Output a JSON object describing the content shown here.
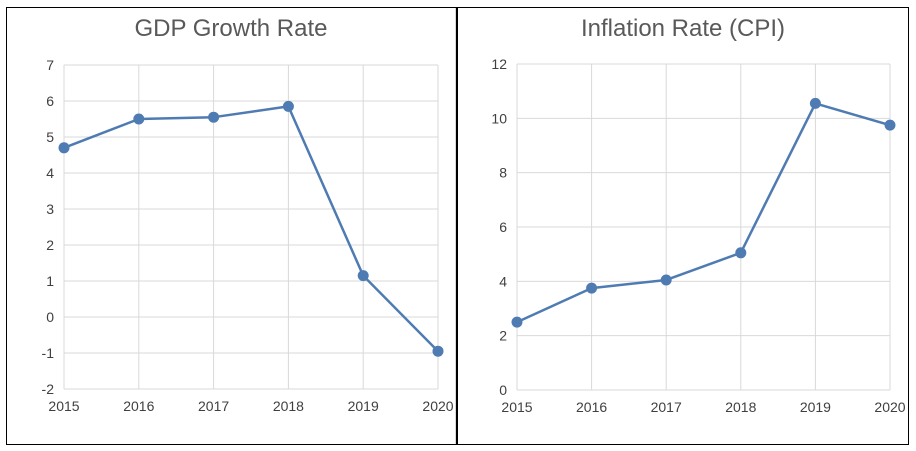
{
  "chart_data": [
    {
      "type": "line",
      "title": "GDP Growth Rate",
      "xlabel": "",
      "ylabel": "",
      "x": [
        "2015",
        "2016",
        "2017",
        "2018",
        "2019",
        "2020"
      ],
      "series": [
        {
          "values": [
            4.7,
            5.5,
            5.55,
            5.85,
            1.15,
            -0.95
          ]
        }
      ],
      "ylim": [
        -2,
        7
      ],
      "yticks": [
        7,
        6,
        5,
        4,
        3,
        2,
        1,
        0,
        -1,
        -2
      ],
      "grid": true,
      "legend": "none",
      "color": "#4f7bb3"
    },
    {
      "type": "line",
      "title": "Inflation Rate (CPI)",
      "xlabel": "",
      "ylabel": "",
      "x": [
        "2015",
        "2016",
        "2017",
        "2018",
        "2019",
        "2020"
      ],
      "series": [
        {
          "values": [
            2.5,
            3.75,
            4.05,
            5.05,
            10.55,
            9.75
          ]
        }
      ],
      "ylim": [
        0,
        12
      ],
      "yticks": [
        12,
        10,
        8,
        6,
        4,
        2,
        0
      ],
      "grid": true,
      "legend": "none",
      "color": "#4f7bb3"
    }
  ]
}
